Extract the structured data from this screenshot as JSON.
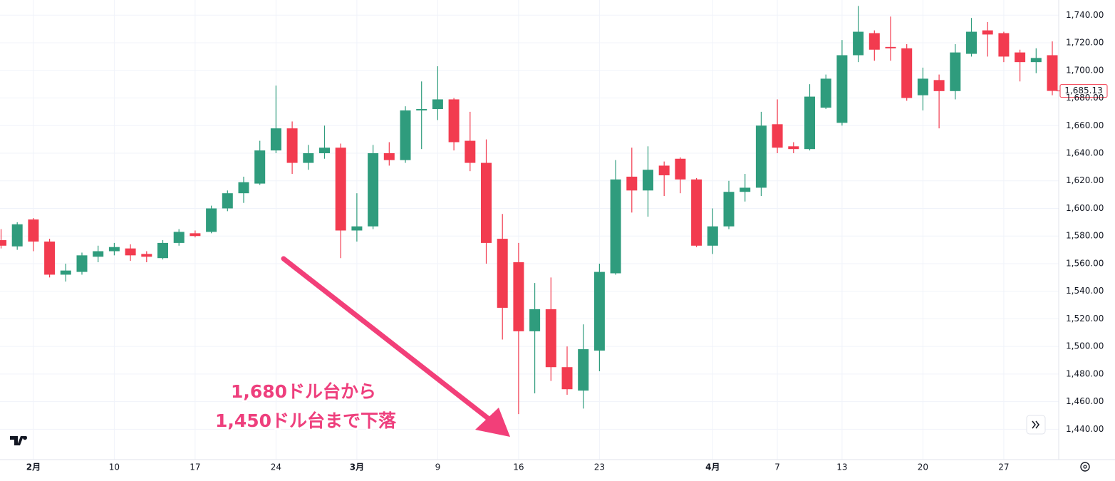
{
  "chart_data": {
    "type": "candlestick",
    "categories": [
      null,
      null,
      "2月",
      null,
      null,
      null,
      null,
      "10",
      null,
      null,
      null,
      null,
      "17",
      null,
      null,
      null,
      null,
      "24",
      null,
      null,
      null,
      null,
      "3月",
      null,
      null,
      null,
      null,
      "9",
      null,
      null,
      null,
      null,
      "16",
      null,
      null,
      null,
      null,
      "23",
      null,
      null,
      null,
      null,
      null,
      null,
      "4月",
      null,
      null,
      null,
      "7",
      null,
      null,
      null,
      "13",
      null,
      null,
      null,
      null,
      "20",
      null,
      null,
      null,
      null,
      "27",
      null,
      null,
      null
    ],
    "series": [
      {
        "up_color": "#2f9c7d",
        "down_color": "#f23b4f",
        "open": [
          1577,
          1572.5,
          1592,
          1576,
          1552,
          1554,
          1565,
          1569,
          1571,
          1567,
          1564,
          1575,
          1582,
          1583,
          1600,
          1611,
          1618,
          1642,
          1658,
          1633,
          1640,
          1644,
          1584,
          1587,
          1640,
          1635,
          1671,
          1672,
          1679,
          1649,
          1633,
          1578,
          1561,
          1511,
          1527,
          1485,
          1468,
          1497,
          1553,
          1623,
          1613,
          1631,
          1636,
          1621,
          1573,
          1587,
          1612,
          1615,
          1661,
          1645,
          1643,
          1673,
          1662,
          1711,
          1727,
          1717,
          1716,
          1682,
          1693,
          1685,
          1712,
          1729,
          1727,
          1713,
          1706,
          1711
        ],
        "high": [
          1585,
          1590,
          1593,
          1578,
          1560,
          1568,
          1573,
          1575,
          1574,
          1569,
          1577,
          1585,
          1584,
          1602,
          1613,
          1623,
          1649,
          1689,
          1663,
          1646,
          1660,
          1647,
          1611,
          1646,
          1648,
          1674,
          1692,
          1703,
          1680,
          1670,
          1650,
          1596,
          1575,
          1546,
          1550,
          1500,
          1516,
          1560,
          1635,
          1644,
          1645,
          1634,
          1637,
          1622,
          1600,
          1620,
          1625,
          1670,
          1679,
          1648,
          1690,
          1697,
          1722,
          1746.7,
          1729,
          1739,
          1719,
          1702,
          1697,
          1719,
          1738,
          1735,
          1728,
          1715,
          1716,
          1721
        ],
        "low": [
          1571,
          1570,
          1569,
          1550,
          1547,
          1552,
          1561,
          1566,
          1562,
          1561,
          1563,
          1573,
          1579,
          1582,
          1598,
          1604,
          1617,
          1640,
          1625,
          1628,
          1636,
          1564,
          1576,
          1585,
          1631,
          1633,
          1643,
          1664,
          1642,
          1627,
          1560,
          1505,
          1451,
          1466,
          1475,
          1465,
          1455,
          1482,
          1552,
          1597,
          1594,
          1609,
          1611,
          1572,
          1567,
          1585,
          1605,
          1609,
          1640,
          1640,
          1642,
          1672,
          1660,
          1706,
          1707,
          1707,
          1678,
          1671,
          1658,
          1679,
          1710,
          1710,
          1706,
          1692,
          1698,
          1682
        ],
        "close": [
          1573,
          1588.5,
          1576,
          1552,
          1555,
          1566,
          1569,
          1572,
          1566,
          1565,
          1575,
          1583,
          1580,
          1600,
          1611,
          1619,
          1642,
          1658,
          1633,
          1640,
          1644,
          1584,
          1587,
          1640,
          1635,
          1671,
          1672,
          1679,
          1648,
          1633,
          1575,
          1528,
          1511,
          1527,
          1485,
          1469,
          1498,
          1554,
          1621,
          1613,
          1628,
          1624,
          1621,
          1573,
          1587,
          1612,
          1615,
          1660,
          1644,
          1643,
          1681,
          1694,
          1711,
          1728,
          1715,
          1716,
          1680,
          1694,
          1685,
          1713,
          1728,
          1726,
          1710,
          1706,
          1709,
          1685.13
        ]
      }
    ],
    "ylim": [
      1418,
      1751
    ],
    "yticks": [
      {
        "value": 1440,
        "label": "1,440.00"
      },
      {
        "value": 1460,
        "label": "1,460.00"
      },
      {
        "value": 1480,
        "label": "1,480.00"
      },
      {
        "value": 1500,
        "label": "1,500.00"
      },
      {
        "value": 1520,
        "label": "1,520.00"
      },
      {
        "value": 1540,
        "label": "1,540.00"
      },
      {
        "value": 1560,
        "label": "1,560.00"
      },
      {
        "value": 1580,
        "label": "1,580.00"
      },
      {
        "value": 1600,
        "label": "1,600.00"
      },
      {
        "value": 1620,
        "label": "1,620.00"
      },
      {
        "value": 1640,
        "label": "1,640.00"
      },
      {
        "value": 1660,
        "label": "1,660.00"
      },
      {
        "value": 1680,
        "label": "1,680.00"
      },
      {
        "value": 1700,
        "label": "1,700.00"
      },
      {
        "value": 1720,
        "label": "1,720.00"
      },
      {
        "value": 1740,
        "label": "1,740.00"
      }
    ],
    "last_price": {
      "value": 1685.13,
      "label": "1,685.13"
    },
    "grid": true,
    "annotations": [
      "1,680ドル台から",
      "1,450ドル台まで下落"
    ]
  }
}
